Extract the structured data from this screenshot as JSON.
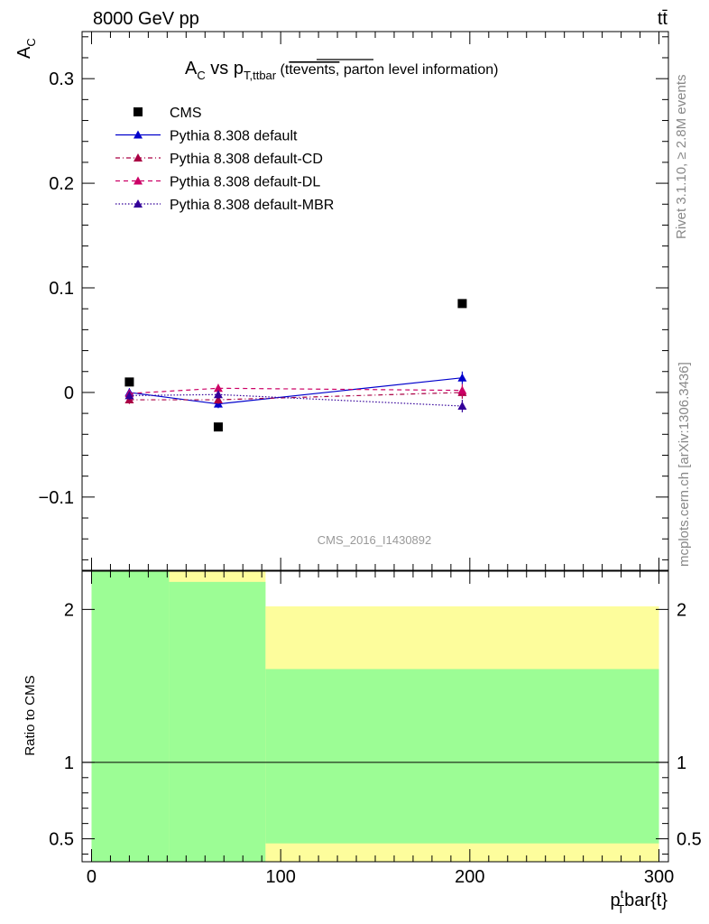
{
  "header": {
    "energy_label": "8000 GeV pp",
    "process_label": "tt̄"
  },
  "side_labels": {
    "rivet": "Rivet 3.1.10, ≥ 2.8M events",
    "source": "mcplots.cern.ch [arXiv:1306.3436]"
  },
  "chart_data": {
    "type": "scatter",
    "title": {
      "main": "A",
      "main_sub": "C",
      "vs": " vs p",
      "vs_sub": "T,ttbar",
      "paren_open": " (",
      "paren_plain": "t",
      "paren_over": "tevents,",
      "paren_rest": " parton level information)"
    },
    "ylabel": {
      "main": "A",
      "sub": "C"
    },
    "xlabel": {
      "main": "p",
      "sup": "t",
      "sub": "T",
      "rest": "bar{t}"
    },
    "ratio_ylabel": "Ratio to CMS",
    "watermark": "CMS_2016_I1430892",
    "xlim": [
      -5,
      305
    ],
    "ylim": [
      -0.17,
      0.345
    ],
    "ratio_ylim": [
      0.35,
      2.25
    ],
    "y_ticks": [
      {
        "value": 0.3,
        "label": "0.3"
      },
      {
        "value": 0.2,
        "label": "0.2"
      },
      {
        "value": 0.1,
        "label": "0.1"
      },
      {
        "value": 0.0,
        "label": "0"
      },
      {
        "value": -0.1,
        "label": "−0.1"
      }
    ],
    "x_ticks": [
      {
        "value": 0,
        "label": "0"
      },
      {
        "value": 100,
        "label": "100"
      },
      {
        "value": 200,
        "label": "200"
      },
      {
        "value": 300,
        "label": "300"
      }
    ],
    "ratio_ticks": [
      {
        "value": 2,
        "label": "2"
      },
      {
        "value": 1,
        "label": "1"
      },
      {
        "value": 0.5,
        "label": "0.5"
      }
    ],
    "data": {
      "name": "CMS",
      "x": [
        20,
        67,
        196
      ],
      "y": [
        0.01,
        -0.033,
        0.085
      ],
      "color": "#000000"
    },
    "series": [
      {
        "name": "Pythia 8.308 default",
        "color": "#0000cc",
        "dash": "",
        "x": [
          20,
          67,
          196
        ],
        "y": [
          0.0,
          -0.011,
          0.014
        ],
        "err": [
          0.004,
          0.004,
          0.006
        ]
      },
      {
        "name": "Pythia 8.308 default-CD",
        "color": "#aa0044",
        "dash": "5,3,1,3",
        "x": [
          20,
          67,
          196
        ],
        "y": [
          -0.007,
          -0.007,
          0.0
        ],
        "err": [
          0.004,
          0.004,
          0.006
        ]
      },
      {
        "name": "Pythia 8.308 default-DL",
        "color": "#cc0066",
        "dash": "5,4",
        "x": [
          20,
          67,
          196
        ],
        "y": [
          -0.001,
          0.004,
          0.002
        ],
        "err": [
          0.004,
          0.004,
          0.006
        ]
      },
      {
        "name": "Pythia 8.308 default-MBR",
        "color": "#330099",
        "dash": "1.5,2",
        "x": [
          20,
          67,
          196
        ],
        "y": [
          -0.003,
          -0.002,
          -0.013
        ],
        "err": [
          0.004,
          0.004,
          0.006
        ]
      }
    ],
    "bands": [
      {
        "x0": 0,
        "x1": 41,
        "green": [
          0.35,
          2.25
        ],
        "yellow": [
          0.35,
          2.25
        ]
      },
      {
        "x0": 41,
        "x1": 92,
        "green": [
          0.35,
          2.18
        ],
        "yellow": [
          0.35,
          2.25
        ]
      },
      {
        "x0": 92,
        "x1": 300,
        "green": [
          0.47,
          1.61
        ],
        "yellow": [
          0.35,
          2.02
        ]
      }
    ],
    "band_colors": {
      "green": "#9cfd95",
      "yellow": "#fdfd9c"
    }
  }
}
